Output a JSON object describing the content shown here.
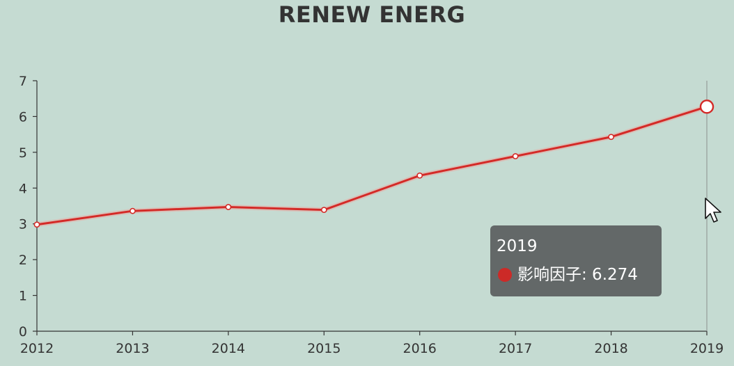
{
  "colors": {
    "background": "#c5dbd2",
    "line": "#d42a27",
    "axis": "#333333",
    "tooltip_bg": "#5a5e5e"
  },
  "chart_data": {
    "type": "line",
    "title": "RENEW ENERG",
    "xlabel": "",
    "ylabel": "",
    "categories": [
      "2012",
      "2013",
      "2014",
      "2015",
      "2016",
      "2017",
      "2018",
      "2019"
    ],
    "series": [
      {
        "name": "影响因子",
        "values": [
          2.98,
          3.36,
          3.47,
          3.39,
          4.35,
          4.89,
          5.43,
          6.274
        ]
      }
    ],
    "ylim": [
      0,
      7
    ],
    "yticks": [
      0,
      1,
      2,
      3,
      4,
      5,
      6,
      7
    ],
    "grid": false,
    "legend": "none",
    "highlighted_category": "2019"
  },
  "tooltip": {
    "title": "2019",
    "series_label": "影响因子: 6.274"
  },
  "icons": {
    "cursor": "mouse-pointer-icon"
  }
}
